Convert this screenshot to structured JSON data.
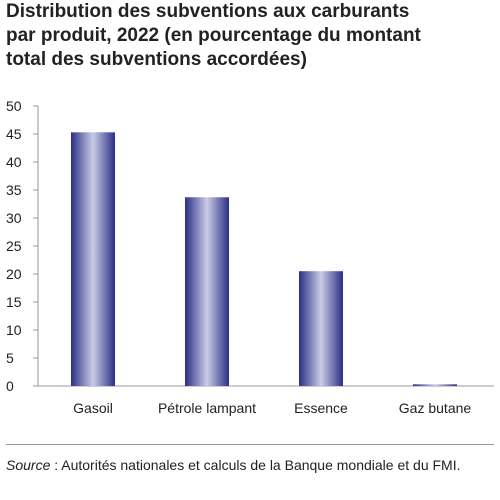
{
  "title_lines": [
    "Distribution des subventions aux carburants",
    "par produit, 2022 (en pourcentage du montant",
    "total des subventions accordées)"
  ],
  "source": {
    "label": "Source",
    "text": " : Autorités nationales et calculs de la Banque mondiale et du FMI."
  },
  "colors": {
    "bar_edge": "#2b2f86",
    "bar_mid": "#c9cce6",
    "axis": "#999999"
  },
  "chart_data": {
    "type": "bar",
    "categories": [
      "Gasoil",
      "Pétrole lampant",
      "Essence",
      "Gaz butane"
    ],
    "values": [
      45.3,
      33.7,
      20.5,
      0.3
    ],
    "title": "Distribution des subventions aux carburants par produit, 2022 (en pourcentage du montant total des subventions accordées)",
    "xlabel": "",
    "ylabel": "",
    "ylim": [
      0,
      50
    ],
    "yticks": [
      0,
      5,
      10,
      15,
      20,
      25,
      30,
      35,
      40,
      45,
      50
    ],
    "grid": false,
    "legend": "none"
  }
}
